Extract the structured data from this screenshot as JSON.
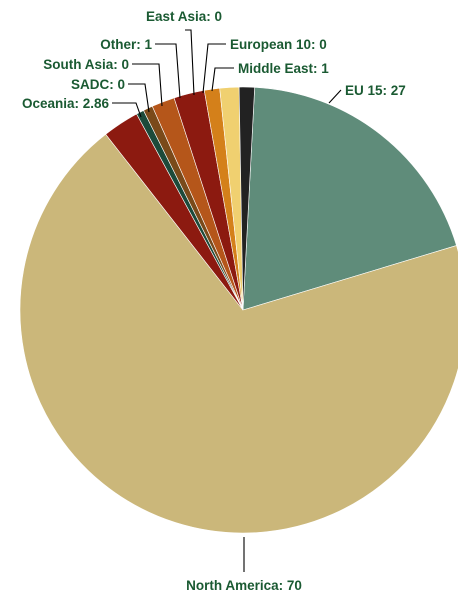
{
  "chart_data": {
    "type": "pie",
    "title": "",
    "slices": [
      {
        "name": "EU 15",
        "value": 27,
        "label": "EU 15: 27",
        "color": "#5f8c7a"
      },
      {
        "name": "North America",
        "value": 70,
        "label": "North America: 70",
        "color": "#cbb77a"
      },
      {
        "name": "Oceania",
        "value": 2.86,
        "label": "Oceania: 2.86",
        "color": "#8c1a10"
      },
      {
        "name": "SADC",
        "value": 0,
        "label": "SADC: 0",
        "color": "#1c4a3a"
      },
      {
        "name": "South Asia",
        "value": 0,
        "label": "South Asia: 0",
        "color": "#7a4a1a"
      },
      {
        "name": "Other",
        "value": 1,
        "label": "Other: 1",
        "color": "#b5561a"
      },
      {
        "name": "East Asia",
        "value": 0,
        "label": "East Asia: 0",
        "color": "#8c1a10"
      },
      {
        "name": "European 10",
        "value": 0,
        "label": "European 10: 0",
        "color": "#d4801a"
      },
      {
        "name": "Middle East",
        "value": 1,
        "label": "Middle East: 1",
        "color": "#f0d070"
      }
    ],
    "legend": "none",
    "label_color": "#1a5a32"
  }
}
